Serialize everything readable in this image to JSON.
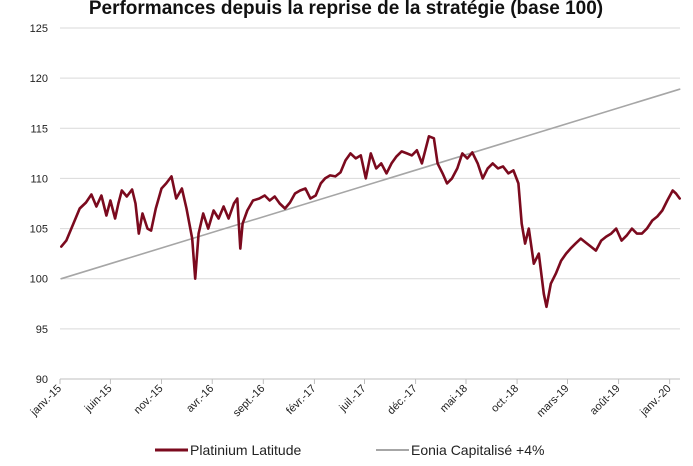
{
  "chart_data": {
    "type": "line",
    "title": "Performances depuis la reprise de la stratégie (base 100)",
    "xlabel": "",
    "ylabel": "",
    "ylim": [
      90,
      125
    ],
    "y_ticks": [
      90,
      95,
      100,
      105,
      110,
      115,
      120,
      125
    ],
    "x_range": [
      "2015-01",
      "2020-02"
    ],
    "x_ticks": [
      {
        "label": "janv.-15",
        "date": "2015-01"
      },
      {
        "label": "juin-15",
        "date": "2015-06"
      },
      {
        "label": "nov.-15",
        "date": "2015-11"
      },
      {
        "label": "avr.-16",
        "date": "2016-04"
      },
      {
        "label": "sept.-16",
        "date": "2016-09"
      },
      {
        "label": "févr.-17",
        "date": "2017-02"
      },
      {
        "label": "juil.-17",
        "date": "2017-07"
      },
      {
        "label": "déc.-17",
        "date": "2017-12"
      },
      {
        "label": "mai-18",
        "date": "2018-05"
      },
      {
        "label": "oct.-18",
        "date": "2018-10"
      },
      {
        "label": "mars-19",
        "date": "2019-03"
      },
      {
        "label": "août-19",
        "date": "2019-08"
      },
      {
        "label": "janv.-20",
        "date": "2020-01"
      }
    ],
    "grid": "horizontal",
    "legend_position": "bottom",
    "series": [
      {
        "name": "Platinium Latitude",
        "color": "#7b0a1e",
        "points": [
          [
            "2015-01-05",
            103.2
          ],
          [
            "2015-01-20",
            103.8
          ],
          [
            "2015-02-10",
            105.5
          ],
          [
            "2015-03-01",
            107.0
          ],
          [
            "2015-03-20",
            107.6
          ],
          [
            "2015-04-05",
            108.4
          ],
          [
            "2015-04-20",
            107.2
          ],
          [
            "2015-05-05",
            108.3
          ],
          [
            "2015-05-20",
            106.3
          ],
          [
            "2015-06-01",
            107.8
          ],
          [
            "2015-06-15",
            106.0
          ],
          [
            "2015-06-25",
            107.5
          ],
          [
            "2015-07-05",
            108.8
          ],
          [
            "2015-07-20",
            108.2
          ],
          [
            "2015-08-05",
            108.9
          ],
          [
            "2015-08-15",
            107.5
          ],
          [
            "2015-08-25",
            104.5
          ],
          [
            "2015-09-05",
            106.5
          ],
          [
            "2015-09-20",
            105.0
          ],
          [
            "2015-10-01",
            104.8
          ],
          [
            "2015-10-15",
            107.0
          ],
          [
            "2015-11-01",
            109.0
          ],
          [
            "2015-11-15",
            109.5
          ],
          [
            "2015-12-01",
            110.2
          ],
          [
            "2015-12-15",
            108.0
          ],
          [
            "2016-01-01",
            109.0
          ],
          [
            "2016-01-15",
            107.0
          ],
          [
            "2016-02-01",
            104.0
          ],
          [
            "2016-02-10",
            100.0
          ],
          [
            "2016-02-20",
            104.5
          ],
          [
            "2016-03-05",
            106.5
          ],
          [
            "2016-03-20",
            105.0
          ],
          [
            "2016-04-05",
            106.8
          ],
          [
            "2016-04-20",
            106.0
          ],
          [
            "2016-05-05",
            107.2
          ],
          [
            "2016-05-20",
            106.0
          ],
          [
            "2016-06-05",
            107.5
          ],
          [
            "2016-06-15",
            108.0
          ],
          [
            "2016-06-24",
            103.0
          ],
          [
            "2016-07-01",
            105.5
          ],
          [
            "2016-07-15",
            106.8
          ],
          [
            "2016-08-01",
            107.8
          ],
          [
            "2016-08-20",
            108.0
          ],
          [
            "2016-09-05",
            108.3
          ],
          [
            "2016-09-20",
            107.8
          ],
          [
            "2016-10-05",
            108.2
          ],
          [
            "2016-10-20",
            107.5
          ],
          [
            "2016-11-05",
            107.0
          ],
          [
            "2016-11-20",
            107.6
          ],
          [
            "2016-12-05",
            108.5
          ],
          [
            "2016-12-20",
            108.8
          ],
          [
            "2017-01-05",
            109.0
          ],
          [
            "2017-01-20",
            108.0
          ],
          [
            "2017-02-05",
            108.3
          ],
          [
            "2017-02-20",
            109.5
          ],
          [
            "2017-03-05",
            110.0
          ],
          [
            "2017-03-20",
            110.3
          ],
          [
            "2017-04-05",
            110.2
          ],
          [
            "2017-04-20",
            110.6
          ],
          [
            "2017-05-05",
            111.8
          ],
          [
            "2017-05-20",
            112.5
          ],
          [
            "2017-06-05",
            112.0
          ],
          [
            "2017-06-20",
            112.3
          ],
          [
            "2017-07-05",
            110.0
          ],
          [
            "2017-07-20",
            112.5
          ],
          [
            "2017-08-05",
            111.0
          ],
          [
            "2017-08-20",
            111.5
          ],
          [
            "2017-09-05",
            110.5
          ],
          [
            "2017-09-20",
            111.5
          ],
          [
            "2017-10-05",
            112.2
          ],
          [
            "2017-10-20",
            112.7
          ],
          [
            "2017-11-05",
            112.5
          ],
          [
            "2017-11-20",
            112.3
          ],
          [
            "2017-12-05",
            112.8
          ],
          [
            "2017-12-20",
            111.5
          ],
          [
            "2018-01-10",
            114.2
          ],
          [
            "2018-01-25",
            114.0
          ],
          [
            "2018-02-05",
            111.5
          ],
          [
            "2018-02-20",
            110.5
          ],
          [
            "2018-03-05",
            109.5
          ],
          [
            "2018-03-20",
            110.0
          ],
          [
            "2018-04-05",
            111.0
          ],
          [
            "2018-04-20",
            112.5
          ],
          [
            "2018-05-05",
            112.0
          ],
          [
            "2018-05-20",
            112.6
          ],
          [
            "2018-06-05",
            111.5
          ],
          [
            "2018-06-20",
            110.0
          ],
          [
            "2018-07-05",
            111.0
          ],
          [
            "2018-07-20",
            111.5
          ],
          [
            "2018-08-05",
            111.0
          ],
          [
            "2018-08-20",
            111.2
          ],
          [
            "2018-09-05",
            110.5
          ],
          [
            "2018-09-20",
            110.8
          ],
          [
            "2018-10-05",
            109.5
          ],
          [
            "2018-10-15",
            105.5
          ],
          [
            "2018-10-25",
            103.5
          ],
          [
            "2018-11-05",
            105.0
          ],
          [
            "2018-11-20",
            101.5
          ],
          [
            "2018-12-05",
            102.5
          ],
          [
            "2018-12-20",
            98.5
          ],
          [
            "2018-12-28",
            97.2
          ],
          [
            "2019-01-10",
            99.5
          ],
          [
            "2019-01-25",
            100.5
          ],
          [
            "2019-02-10",
            101.8
          ],
          [
            "2019-02-25",
            102.5
          ],
          [
            "2019-03-10",
            103.0
          ],
          [
            "2019-03-25",
            103.5
          ],
          [
            "2019-04-10",
            104.0
          ],
          [
            "2019-04-25",
            103.6
          ],
          [
            "2019-05-10",
            103.2
          ],
          [
            "2019-05-25",
            102.8
          ],
          [
            "2019-06-10",
            103.8
          ],
          [
            "2019-06-25",
            104.2
          ],
          [
            "2019-07-10",
            104.5
          ],
          [
            "2019-07-25",
            105.0
          ],
          [
            "2019-08-10",
            103.8
          ],
          [
            "2019-08-25",
            104.3
          ],
          [
            "2019-09-10",
            105.0
          ],
          [
            "2019-09-25",
            104.5
          ],
          [
            "2019-10-10",
            104.5
          ],
          [
            "2019-10-25",
            105.0
          ],
          [
            "2019-11-10",
            105.8
          ],
          [
            "2019-11-25",
            106.2
          ],
          [
            "2019-12-10",
            106.8
          ],
          [
            "2019-12-25",
            107.8
          ],
          [
            "2020-01-10",
            108.8
          ],
          [
            "2020-01-20",
            108.5
          ],
          [
            "2020-01-31",
            108.0
          ]
        ]
      },
      {
        "name": "Eonia Capitalisé +4%",
        "color": "#a6a6a6",
        "points": [
          [
            "2015-01-05",
            100.0
          ],
          [
            "2020-01-31",
            118.9
          ]
        ]
      }
    ]
  }
}
